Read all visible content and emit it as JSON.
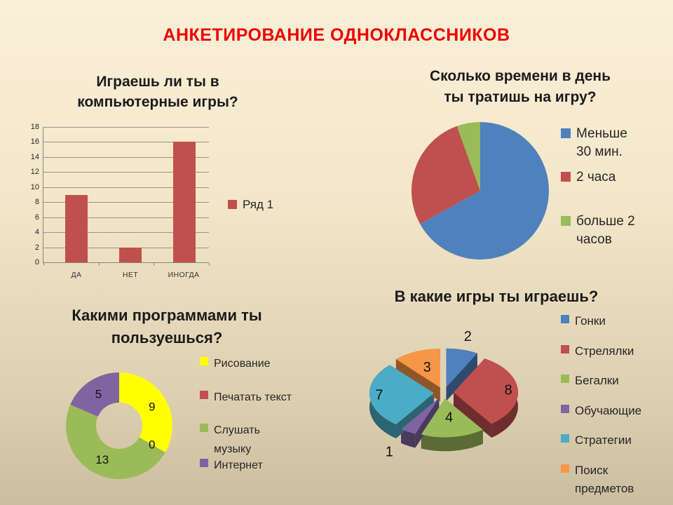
{
  "slide": {
    "title": "АНКЕТИРОВАНИЕ ОДНОКЛАССНИКОВ",
    "title_color": "#EE0000",
    "background_top": "#FAF0D9",
    "background_bottom": "#CBBE9F"
  },
  "chart_data": [
    {
      "type": "bar",
      "title": "Играешь ли ты в компьютерные игры?",
      "title_lines": [
        "Играешь ли ты в",
        "компьютерные игры?"
      ],
      "categories": [
        "ДА",
        "НЕТ",
        "ИНОГДА"
      ],
      "values": [
        9,
        2,
        16
      ],
      "series_name": "Ряд 1",
      "color": "#C0504D",
      "ylim": [
        0,
        18
      ],
      "ytick_step": 2,
      "grid": true,
      "legend_position": "right"
    },
    {
      "type": "pie",
      "title": "Сколько времени в день ты тратишь на игру?",
      "title_lines": [
        "Сколько времени в день",
        "ты тратишь на игру?"
      ],
      "slices": [
        {
          "label": "Меньше 30 мин.",
          "legend_lines": [
            "Меньше",
            "30 мин."
          ],
          "percent": 67,
          "color": "#4F81BD"
        },
        {
          "label": "2 часа",
          "percent": 27.5,
          "color": "#C0504D"
        },
        {
          "label": "больше 2 часов",
          "legend_lines": [
            "больше 2",
            "часов"
          ],
          "percent": 5.5,
          "color": "#9BBB59"
        }
      ],
      "legend_position": "right"
    },
    {
      "type": "donut",
      "title": "Какими программами ты пользуешься?",
      "title_lines": [
        "Какими программами ты",
        "пользуешься?"
      ],
      "slices": [
        {
          "label": "Рисование",
          "value": 9,
          "color": "#FFFF00"
        },
        {
          "label": "Печатать текст",
          "value": 0,
          "color": "#C0504D"
        },
        {
          "label": "Слушать музыку",
          "legend_lines": [
            "Слушать",
            "музыку"
          ],
          "value": 13,
          "color": "#9BBB59"
        },
        {
          "label": "Интернет",
          "value": 5,
          "color": "#8064A2"
        }
      ],
      "data_labels": true,
      "legend_position": "right"
    },
    {
      "type": "pie3d",
      "title": "В какие игры ты играешь?",
      "title_lines": [
        "В какие игры ты играешь?"
      ],
      "slices": [
        {
          "label": "Гонки",
          "value": 2,
          "color": "#4F81BD"
        },
        {
          "label": "Стрелялки",
          "value": 8,
          "color": "#C0504D"
        },
        {
          "label": "Бегалки",
          "value": 4,
          "color": "#9BBB59"
        },
        {
          "label": "Обучающие",
          "value": 1,
          "color": "#8064A2"
        },
        {
          "label": "Стратегии",
          "value": 7,
          "color": "#4BACC6"
        },
        {
          "label": "Поиск предметов",
          "legend_lines": [
            "Поиск",
            "предметов"
          ],
          "value": 3,
          "color": "#F79646"
        }
      ],
      "data_labels": true,
      "legend_position": "right"
    }
  ]
}
